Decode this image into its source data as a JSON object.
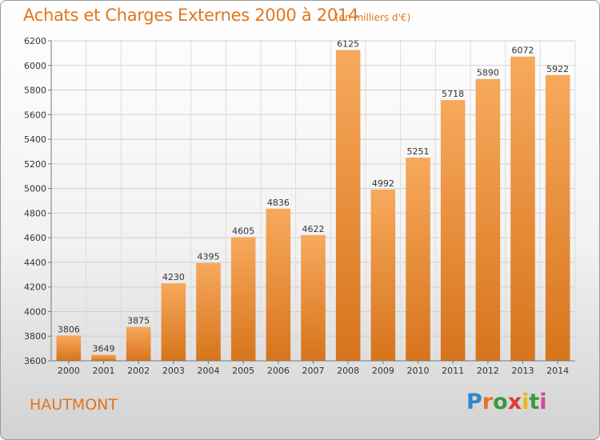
{
  "header": {
    "title": "Achats et Charges Externes 2000 à 2014",
    "unit": "(en milliers d'€)"
  },
  "footer": {
    "city": "HAUTMONT",
    "logo_letters": [
      "P",
      "r",
      "o",
      "x",
      "i",
      "t",
      "i"
    ],
    "logo_colors": [
      "#2f86c8",
      "#e8732a",
      "#3a9a3a",
      "#e03a3a",
      "#f2b318",
      "#3a9a3a",
      "#c84aa0"
    ]
  },
  "chart_data": {
    "type": "bar",
    "title": "Achats et Charges Externes 2000 à 2014",
    "categories": [
      "2000",
      "2001",
      "2002",
      "2003",
      "2004",
      "2005",
      "2006",
      "2007",
      "2008",
      "2009",
      "2010",
      "2011",
      "2012",
      "2013",
      "2014"
    ],
    "values": [
      3806,
      3649,
      3875,
      4230,
      4395,
      4605,
      4836,
      4622,
      6125,
      4992,
      5251,
      5718,
      5890,
      6072,
      5922
    ],
    "ylim": [
      3600,
      6200
    ],
    "yticks": [
      3600,
      3800,
      4000,
      4200,
      4400,
      4600,
      4800,
      5000,
      5200,
      5400,
      5600,
      5800,
      6000,
      6200
    ],
    "grid": true,
    "bar_color_light": "#f7a95c",
    "bar_color_dark": "#d7741c"
  }
}
